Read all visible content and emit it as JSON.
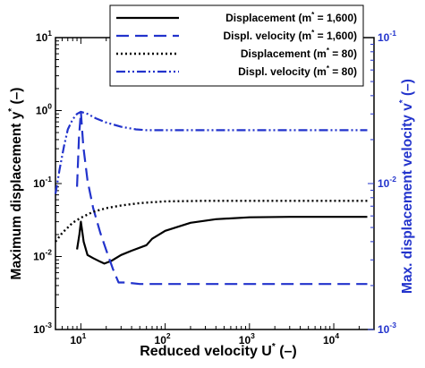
{
  "chart_data": {
    "type": "line",
    "xlabel": "Reduced velocity U",
    "xlabel_sup": "*",
    "xlabel_tail": " (–)",
    "ylabel_left": "Maximum displacement y",
    "ylabel_left_sup": "*",
    "ylabel_left_tail": " (–)",
    "ylabel_right": "Max. displacement velocity v",
    "ylabel_right_sup": "*",
    "ylabel_right_tail": " (–)",
    "x_scale": "log",
    "xlim": [
      5,
      30000
    ],
    "ylim_left": [
      0.001,
      10
    ],
    "ylim_right": [
      0.001,
      0.1
    ],
    "x_ticks": [
      {
        "base": "10",
        "exp": "1"
      },
      {
        "base": "10",
        "exp": "2"
      },
      {
        "base": "10",
        "exp": "3"
      },
      {
        "base": "10",
        "exp": "4"
      }
    ],
    "y_left_ticks": [
      {
        "base": "10",
        "exp": "-3"
      },
      {
        "base": "10",
        "exp": "-2"
      },
      {
        "base": "10",
        "exp": "-1"
      },
      {
        "base": "10",
        "exp": "0"
      },
      {
        "base": "10",
        "exp": "1"
      }
    ],
    "y_right_ticks": [
      {
        "base": "10",
        "exp": "-3"
      },
      {
        "base": "10",
        "exp": "-2"
      },
      {
        "base": "10",
        "exp": "-1"
      }
    ],
    "grid": false,
    "legend_position": "top-right",
    "series": [
      {
        "name": "Displacement (m* = 1,600)",
        "axis": "left",
        "style": "solid",
        "color": "#000000",
        "points": [
          [
            9,
            0.0125
          ],
          [
            9.6,
            0.02
          ],
          [
            10,
            0.03
          ],
          [
            10.8,
            0.016
          ],
          [
            12,
            0.0105
          ],
          [
            14,
            0.0095
          ],
          [
            17,
            0.0085
          ],
          [
            19,
            0.008
          ],
          [
            23,
            0.0087
          ],
          [
            30,
            0.0105
          ],
          [
            40,
            0.012
          ],
          [
            60,
            0.0143
          ],
          [
            70,
            0.0175
          ],
          [
            100,
            0.0225
          ],
          [
            200,
            0.029
          ],
          [
            400,
            0.0325
          ],
          [
            1000,
            0.0345
          ],
          [
            3000,
            0.035
          ],
          [
            10000,
            0.035
          ],
          [
            25000,
            0.035
          ]
        ]
      },
      {
        "name": "Displ. velocity (m* = 1,600)",
        "axis": "right",
        "style": "dashed",
        "color": "#2233cc",
        "points": [
          [
            9,
            0.0095
          ],
          [
            9.5,
            0.021
          ],
          [
            10,
            0.031
          ],
          [
            10.7,
            0.018
          ],
          [
            12,
            0.0105
          ],
          [
            14,
            0.0068
          ],
          [
            17,
            0.0046
          ],
          [
            20,
            0.0035
          ],
          [
            24,
            0.0026
          ],
          [
            28,
            0.0021
          ],
          [
            34,
            0.0021
          ],
          [
            50,
            0.00205
          ],
          [
            100,
            0.00205
          ],
          [
            1000,
            0.00205
          ],
          [
            10000,
            0.00205
          ],
          [
            25000,
            0.00205
          ]
        ]
      },
      {
        "name": "Displacement (m* = 80)",
        "axis": "left",
        "style": "dotted",
        "color": "#000000",
        "points": [
          [
            5,
            0.016
          ],
          [
            6,
            0.021
          ],
          [
            7,
            0.025
          ],
          [
            8,
            0.029
          ],
          [
            10,
            0.034
          ],
          [
            14,
            0.041
          ],
          [
            20,
            0.046
          ],
          [
            30,
            0.05
          ],
          [
            50,
            0.054
          ],
          [
            100,
            0.057
          ],
          [
            300,
            0.058
          ],
          [
            1000,
            0.058
          ],
          [
            10000,
            0.058
          ],
          [
            25000,
            0.058
          ]
        ]
      },
      {
        "name": "Displ. velocity (m* = 80)",
        "axis": "right",
        "style": "dashdotdot",
        "color": "#2233cc",
        "points": [
          [
            5,
            0.0085
          ],
          [
            5.6,
            0.0125
          ],
          [
            6.3,
            0.018
          ],
          [
            7,
            0.0235
          ],
          [
            8,
            0.0275
          ],
          [
            9,
            0.03
          ],
          [
            10,
            0.031
          ],
          [
            12,
            0.03
          ],
          [
            15,
            0.028
          ],
          [
            20,
            0.0262
          ],
          [
            30,
            0.0245
          ],
          [
            45,
            0.0235
          ],
          [
            60,
            0.0232
          ],
          [
            100,
            0.0232
          ],
          [
            1000,
            0.0232
          ],
          [
            10000,
            0.0232
          ],
          [
            25000,
            0.0232
          ]
        ]
      }
    ],
    "legend_labels": [
      {
        "pre": "Displacement (m",
        "sup": "*",
        "post": " = 1,600)"
      },
      {
        "pre": "Displ. velocity (m",
        "sup": "*",
        "post": " = 1,600)"
      },
      {
        "pre": "Displacement (m",
        "sup": "*",
        "post": " = 80)"
      },
      {
        "pre": "Displ. velocity (m",
        "sup": "*",
        "post": " = 80)"
      }
    ],
    "colors": {
      "black": "#000000",
      "blue": "#2233cc"
    }
  }
}
